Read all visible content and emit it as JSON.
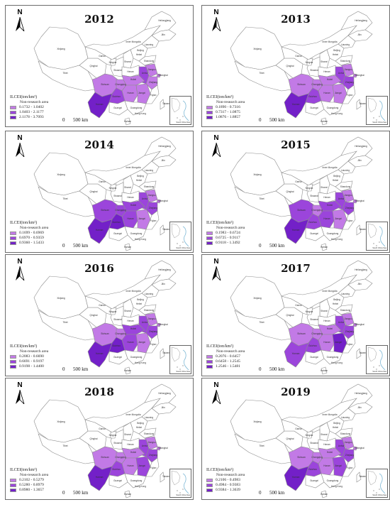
{
  "colors": {
    "class1": "#c27ae6",
    "class2": "#9b45db",
    "class3": "#7320c8",
    "province_edge": "#8d8d8d",
    "panel_border": "#6d6d6d"
  },
  "legend_title": "ILCEI(ton/km²)",
  "non_research_label": "Non-research area",
  "scale_zero": "0",
  "scale_label": "500 km",
  "north_label": "N",
  "inset_caption": "South China Sea",
  "province_labels": [
    "Xinjiang",
    "Tibet",
    "Qinghai",
    "Gansu",
    "Inner Mongolia",
    "Heilongjiang",
    "Jilin",
    "Liaoning",
    "Beijing",
    "Hebei",
    "Shanxi",
    "Shaanxi",
    "Ningxia",
    "Shandong",
    "Henan",
    "Sichuan",
    "Chongqing",
    "Hubei",
    "Anhui",
    "Jiangsu",
    "Shanghai",
    "Zhejiang",
    "Hunan",
    "Jiangxi",
    "Guizhou",
    "Yunnan",
    "Guangxi",
    "Guangdong",
    "Fujian",
    "Hainan",
    "Taiwan",
    "Hong Kong"
  ],
  "panels": [
    {
      "year": "2012",
      "ranges": [
        "0.1732 - 1.0402",
        "1.0403 - 2.1177",
        "2.1178 - 3.7093"
      ],
      "classes": {
        "Sichuan": 1,
        "Chongqing": 1,
        "Hubei": 1,
        "Hunan": 1,
        "Jiangxi": 1,
        "Anhui": 2,
        "Jiangsu": 1,
        "Zhejiang": 1,
        "Shanghai": 1,
        "Guizhou": 2,
        "Yunnan": 3
      }
    },
    {
      "year": "2013",
      "ranges": [
        "0.1890 - 0.7316",
        "0.7317 - 1.0875",
        "1.0876 - 1.8857"
      ],
      "classes": {
        "Sichuan": 1,
        "Chongqing": 1,
        "Hubei": 1,
        "Hunan": 1,
        "Jiangxi": 1,
        "Anhui": 2,
        "Jiangsu": 1,
        "Zhejiang": 2,
        "Shanghai": 1,
        "Guizhou": 2,
        "Yunnan": 3
      }
    },
    {
      "year": "2014",
      "ranges": [
        "0.1699 - 0.6969",
        "0.6970 - 0.9359",
        "0.9360 - 1.5433"
      ],
      "classes": {
        "Sichuan": 2,
        "Chongqing": 2,
        "Hubei": 2,
        "Hunan": 2,
        "Jiangxi": 1,
        "Anhui": 2,
        "Jiangsu": 1,
        "Zhejiang": 2,
        "Shanghai": 1,
        "Guizhou": 3,
        "Yunnan": 3
      }
    },
    {
      "year": "2015",
      "ranges": [
        "0.1983 - 0.6724",
        "0.6725 - 0.9117",
        "0.9118 - 1.3492"
      ],
      "classes": {
        "Sichuan": 2,
        "Chongqing": 1,
        "Hubei": 2,
        "Hunan": 2,
        "Jiangxi": 1,
        "Anhui": 2,
        "Jiangsu": 1,
        "Zhejiang": 2,
        "Shanghai": 1,
        "Guizhou": 2,
        "Yunnan": 3
      }
    },
    {
      "year": "2016",
      "ranges": [
        "0.2083 - 0.6690",
        "0.6691 - 0.9197",
        "0.9198 - 1.4400"
      ],
      "classes": {
        "Sichuan": 1,
        "Chongqing": 1,
        "Hubei": 2,
        "Hunan": 2,
        "Jiangxi": 1,
        "Anhui": 2,
        "Jiangsu": 1,
        "Zhejiang": 2,
        "Shanghai": 1,
        "Guizhou": 3,
        "Yunnan": 3
      }
    },
    {
      "year": "2017",
      "ranges": [
        "0.2076 - 0.6457",
        "0.6458 - 1.2545",
        "1.2546 - 1.5481"
      ],
      "classes": {
        "Sichuan": 1,
        "Chongqing": 1,
        "Hubei": 1,
        "Hunan": 1,
        "Jiangxi": 3,
        "Anhui": 2,
        "Jiangsu": 1,
        "Zhejiang": 2,
        "Shanghai": 1,
        "Guizhou": 2,
        "Yunnan": 2
      }
    },
    {
      "year": "2018",
      "ranges": [
        "0.2102 - 0.5279",
        "0.5280 - 0.8979",
        "0.8980 - 1.3657"
      ],
      "classes": {
        "Sichuan": 1,
        "Chongqing": 1,
        "Hubei": 1,
        "Hunan": 1,
        "Jiangxi": 2,
        "Anhui": 2,
        "Jiangsu": 1,
        "Zhejiang": 2,
        "Shanghai": 1,
        "Guizhou": 2,
        "Yunnan": 3
      }
    },
    {
      "year": "2019",
      "ranges": [
        "0.2106 - 0.4983",
        "0.4984 - 0.9383",
        "0.9384 - 1.3639"
      ],
      "classes": {
        "Sichuan": 1,
        "Chongqing": 1,
        "Hubei": 1,
        "Hunan": 1,
        "Jiangxi": 2,
        "Anhui": 2,
        "Jiangsu": 1,
        "Zhejiang": 2,
        "Shanghai": 1,
        "Guizhou": 2,
        "Yunnan": 3
      }
    }
  ]
}
